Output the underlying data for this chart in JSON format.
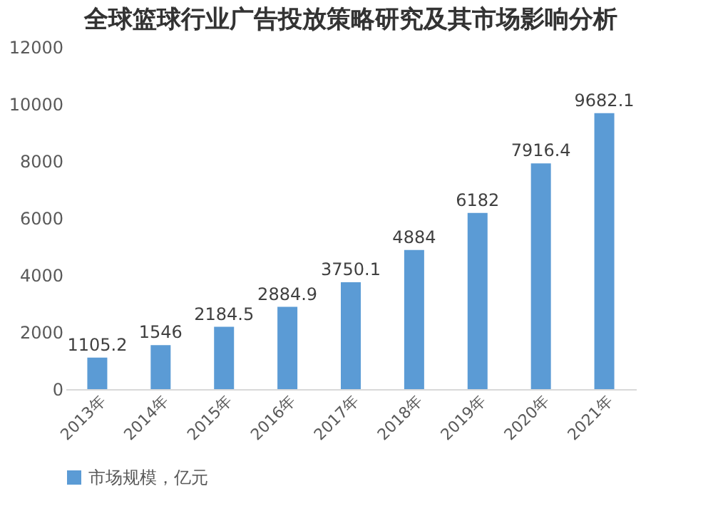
{
  "chart_data": {
    "type": "bar",
    "title": "全球篮球行业广告投放策略研究及其市场影响分析",
    "categories": [
      "2013年",
      "2014年",
      "2015年",
      "2016年",
      "2017年",
      "2018年",
      "2019年",
      "2020年",
      "2021年"
    ],
    "series": [
      {
        "name": "市场规模，亿元",
        "color": "#5b9bd5",
        "values": [
          1105.2,
          1546,
          2184.5,
          2884.9,
          3750.1,
          4884,
          6182,
          7916.4,
          9682.1
        ]
      }
    ],
    "ylim": [
      0,
      12000
    ],
    "yticks": [
      0,
      2000,
      4000,
      6000,
      8000,
      10000,
      12000
    ],
    "grid": false,
    "legend": "bottom",
    "data_labels": true
  }
}
